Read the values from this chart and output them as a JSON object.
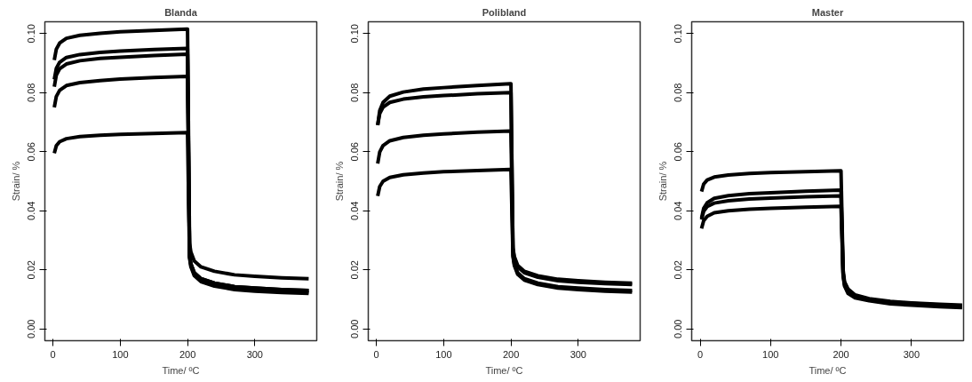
{
  "chart_data": [
    {
      "type": "line",
      "title": "Blanda",
      "xlabel": "Time/ ºC",
      "ylabel": "Strain/ %",
      "xlim": [
        -12,
        392
      ],
      "ylim": [
        -0.004,
        0.104
      ],
      "xticks": [
        0,
        100,
        200,
        300
      ],
      "yticks": [
        {
          "value": 0,
          "label": "0.00"
        },
        {
          "value": 0.02,
          "label": "0.02"
        },
        {
          "value": 0.04,
          "label": "0.04"
        },
        {
          "value": 0.06,
          "label": "0.06"
        },
        {
          "value": 0.08,
          "label": "0.08"
        },
        {
          "value": 0.1,
          "label": "0.10"
        }
      ],
      "x": [
        2,
        5,
        10,
        20,
        40,
        70,
        100,
        150,
        199,
        200,
        203,
        205,
        210,
        220,
        240,
        270,
        300,
        340,
        380
      ],
      "series": [
        {
          "color": "#000000",
          "values": [
            0.091,
            0.0947,
            0.0968,
            0.0984,
            0.0994,
            0.1001,
            0.1006,
            0.1011,
            0.1015,
            0.1015,
            0.029,
            0.026,
            0.023,
            0.021,
            0.0195,
            0.0183,
            0.0178,
            0.0173,
            0.017
          ]
        },
        {
          "color": "#000000",
          "values": [
            0.0845,
            0.0882,
            0.0903,
            0.0919,
            0.0929,
            0.0936,
            0.0941,
            0.0946,
            0.095,
            0.095,
            0.025,
            0.022,
            0.019,
            0.017,
            0.0155,
            0.0143,
            0.0138,
            0.0133,
            0.013
          ]
        },
        {
          "color": "#000000",
          "values": [
            0.082,
            0.0859,
            0.0881,
            0.0897,
            0.0908,
            0.0916,
            0.092,
            0.0926,
            0.093,
            0.093,
            0.0245,
            0.0215,
            0.0185,
            0.0165,
            0.015,
            0.0138,
            0.0133,
            0.0128,
            0.0125
          ]
        },
        {
          "color": "#000000",
          "values": [
            0.075,
            0.0787,
            0.0808,
            0.0824,
            0.0834,
            0.0841,
            0.0846,
            0.0851,
            0.0855,
            0.0855,
            0.025,
            0.022,
            0.019,
            0.017,
            0.0155,
            0.0143,
            0.0138,
            0.0133,
            0.013
          ]
        },
        {
          "color": "#000000",
          "values": [
            0.0595,
            0.062,
            0.0634,
            0.0644,
            0.0651,
            0.0656,
            0.0659,
            0.0662,
            0.0665,
            0.0665,
            0.024,
            0.021,
            0.018,
            0.016,
            0.0145,
            0.0133,
            0.0128,
            0.0123,
            0.012
          ]
        }
      ]
    },
    {
      "type": "line",
      "title": "Polibland",
      "xlabel": "Time/ ºC",
      "ylabel": "Strain/ %",
      "xlim": [
        -12,
        392
      ],
      "ylim": [
        -0.004,
        0.104
      ],
      "xticks": [
        0,
        100,
        200,
        300
      ],
      "yticks": [
        {
          "value": 0,
          "label": "0.00"
        },
        {
          "value": 0.02,
          "label": "0.02"
        },
        {
          "value": 0.04,
          "label": "0.04"
        },
        {
          "value": 0.06,
          "label": "0.06"
        },
        {
          "value": 0.08,
          "label": "0.08"
        },
        {
          "value": 0.1,
          "label": "0.10"
        }
      ],
      "x": [
        2,
        5,
        10,
        20,
        40,
        70,
        100,
        150,
        199,
        200,
        203,
        205,
        210,
        220,
        240,
        270,
        300,
        340,
        380
      ],
      "series": [
        {
          "color": "#000000",
          "values": [
            0.069,
            0.0739,
            0.0767,
            0.0788,
            0.0802,
            0.0812,
            0.0817,
            0.0824,
            0.083,
            0.083,
            0.0275,
            0.0245,
            0.0215,
            0.0195,
            0.018,
            0.0168,
            0.0163,
            0.0158,
            0.0155
          ]
        },
        {
          "color": "#000000",
          "values": [
            0.069,
            0.0729,
            0.0751,
            0.0767,
            0.0778,
            0.0786,
            0.079,
            0.0796,
            0.08,
            0.08,
            0.027,
            0.024,
            0.021,
            0.019,
            0.0175,
            0.0163,
            0.0158,
            0.0153,
            0.015
          ]
        },
        {
          "color": "#000000",
          "values": [
            0.056,
            0.0599,
            0.0621,
            0.0637,
            0.0648,
            0.0656,
            0.066,
            0.0666,
            0.067,
            0.067,
            0.025,
            0.022,
            0.019,
            0.017,
            0.0155,
            0.0143,
            0.0138,
            0.0133,
            0.013
          ]
        },
        {
          "color": "#000000",
          "values": [
            0.045,
            0.0482,
            0.05,
            0.0513,
            0.0522,
            0.0528,
            0.0532,
            0.0536,
            0.054,
            0.054,
            0.0245,
            0.0215,
            0.0185,
            0.0165,
            0.015,
            0.0138,
            0.0133,
            0.0128,
            0.0125
          ]
        }
      ]
    },
    {
      "type": "line",
      "title": "Master",
      "xlabel": "Time/ ºC",
      "ylabel": "Strain/ %",
      "xlim": [
        -12,
        374
      ],
      "ylim": [
        -0.004,
        0.104
      ],
      "xticks": [
        0,
        100,
        200,
        300
      ],
      "yticks": [
        {
          "value": 0,
          "label": "0.00"
        },
        {
          "value": 0.02,
          "label": "0.02"
        },
        {
          "value": 0.04,
          "label": "0.04"
        },
        {
          "value": 0.06,
          "label": "0.06"
        },
        {
          "value": 0.08,
          "label": "0.08"
        },
        {
          "value": 0.1,
          "label": "0.10"
        }
      ],
      "x": [
        2,
        5,
        10,
        20,
        40,
        70,
        100,
        150,
        199,
        200,
        203,
        205,
        210,
        220,
        240,
        270,
        300,
        340,
        372
      ],
      "series": [
        {
          "color": "#000000",
          "values": [
            0.0465,
            0.049,
            0.0504,
            0.0514,
            0.0521,
            0.0526,
            0.0529,
            0.0532,
            0.0535,
            0.0535,
            0.02,
            0.016,
            0.0135,
            0.0115,
            0.0102,
            0.0093,
            0.0088,
            0.0083,
            0.008
          ]
        },
        {
          "color": "#000000",
          "values": [
            0.0375,
            0.0408,
            0.0427,
            0.0442,
            0.0451,
            0.0458,
            0.0461,
            0.0466,
            0.047,
            0.047,
            0.019,
            0.0155,
            0.013,
            0.0112,
            0.01,
            0.0091,
            0.0086,
            0.0081,
            0.0078
          ]
        },
        {
          "color": "#000000",
          "values": [
            0.037,
            0.0398,
            0.0414,
            0.0426,
            0.0434,
            0.044,
            0.0443,
            0.0447,
            0.045,
            0.045,
            0.0185,
            0.015,
            0.0125,
            0.011,
            0.0098,
            0.0088,
            0.0083,
            0.0078,
            0.0075
          ]
        },
        {
          "color": "#000000",
          "values": [
            0.034,
            0.0366,
            0.0381,
            0.0393,
            0.04,
            0.0405,
            0.0408,
            0.0412,
            0.0415,
            0.0415,
            0.018,
            0.0145,
            0.012,
            0.0105,
            0.0095,
            0.0085,
            0.008,
            0.0075,
            0.0072
          ]
        }
      ]
    }
  ]
}
